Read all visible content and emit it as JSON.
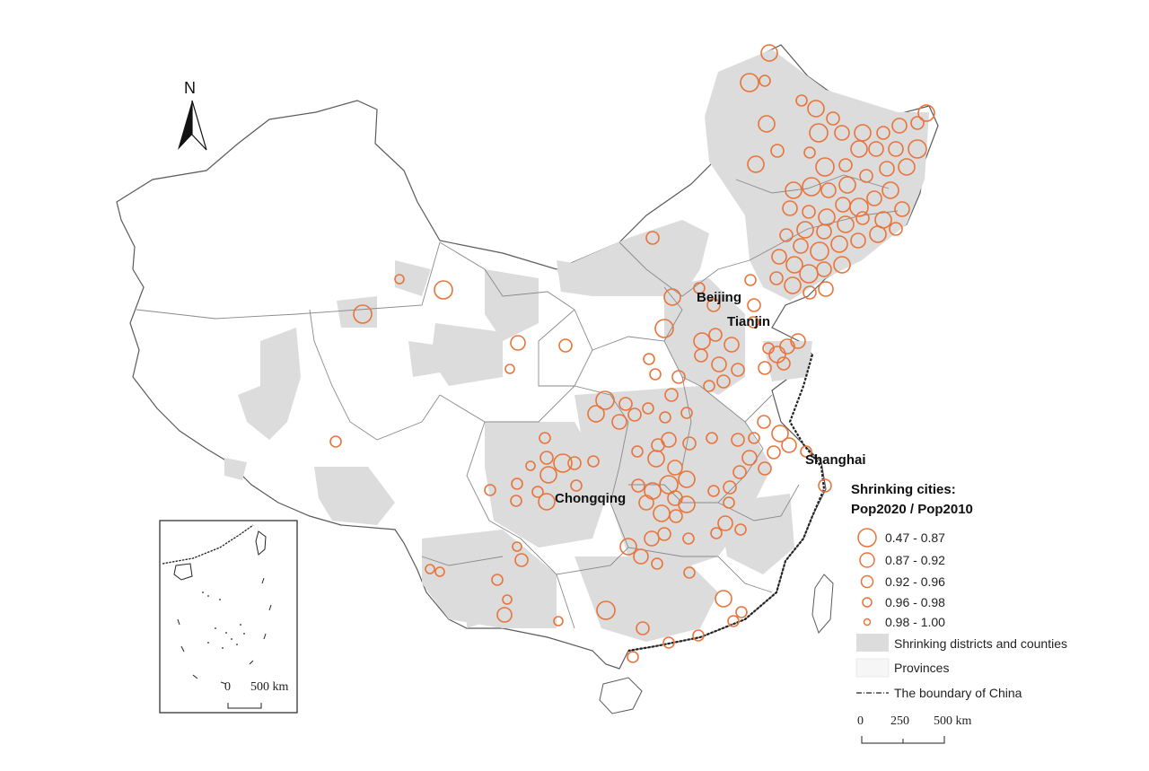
{
  "map": {
    "north_label": "N",
    "city_labels": [
      {
        "id": "beijing",
        "text": "Beijing"
      },
      {
        "id": "tianjin",
        "text": "Tianjin"
      },
      {
        "id": "shanghai",
        "text": "Shanghai"
      },
      {
        "id": "chongqing",
        "text": "Chongqing"
      }
    ],
    "colors": {
      "circle_stroke": "#e8743b",
      "shrinking_fill": "#dcdcdc",
      "province_fill": "#ffffff",
      "province_stroke": "#8a8a8a",
      "boundary_stroke": "#222222"
    }
  },
  "legend": {
    "title_line1": "Shrinking cities:",
    "title_line2": "Pop2020 / Pop2010",
    "classes": [
      {
        "label": "0.47 - 0.87"
      },
      {
        "label": "0.87 - 0.92"
      },
      {
        "label": "0.92 - 0.96"
      },
      {
        "label": "0.96 - 0.98"
      },
      {
        "label": "0.98 - 1.00"
      }
    ],
    "shrinking_label": "Shrinking districts and counties",
    "provinces_label": "Provinces",
    "boundary_label": "The boundary of China"
  },
  "scale_main": {
    "ticks": [
      "0",
      "250",
      "500 km"
    ]
  },
  "scale_inset": {
    "ticks": [
      "0",
      "500 km"
    ]
  }
}
